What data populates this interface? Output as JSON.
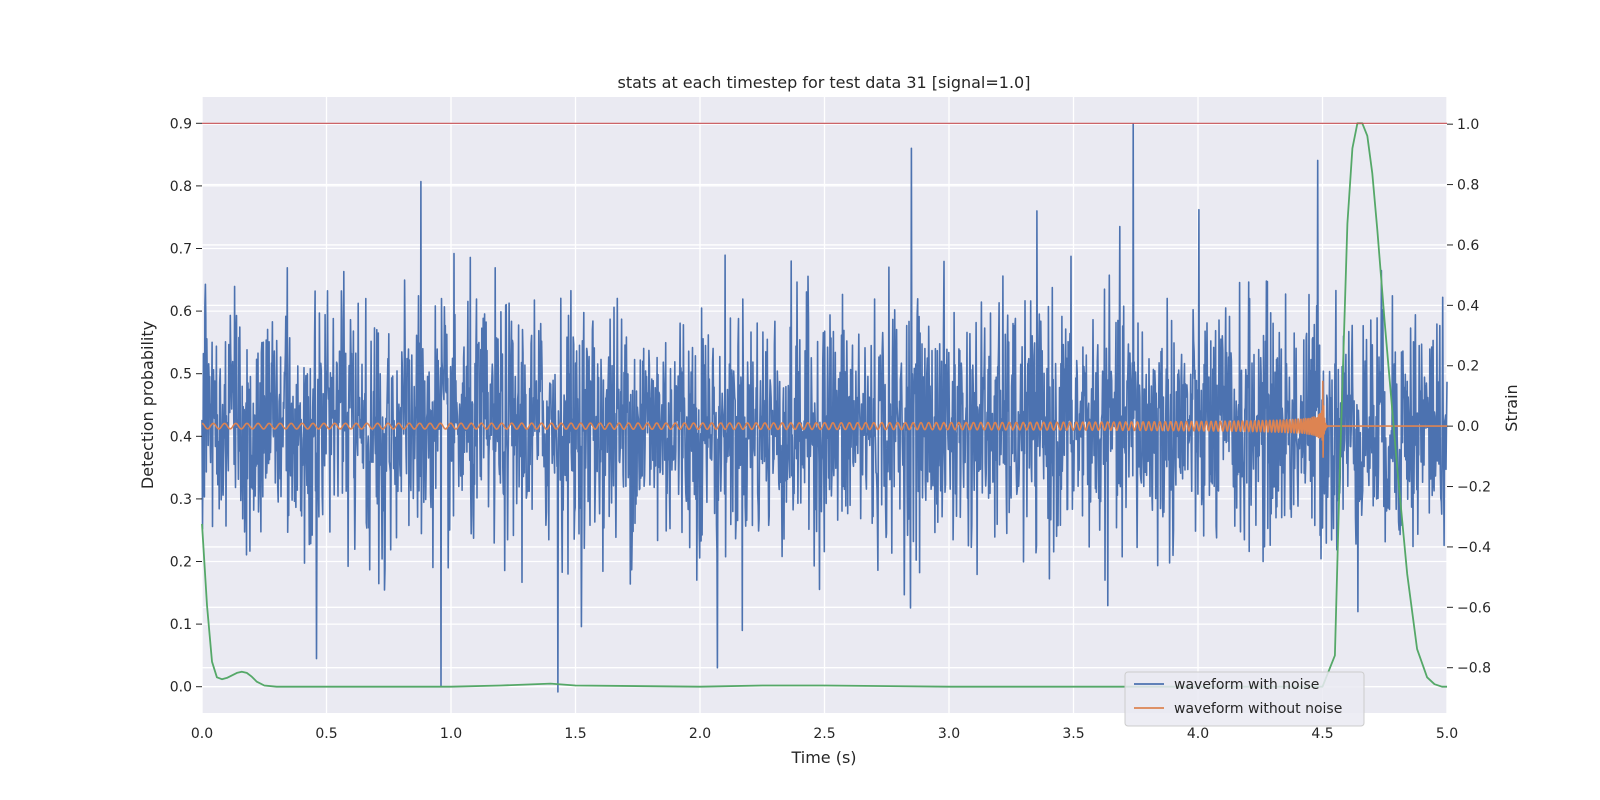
{
  "chart_data": {
    "type": "line",
    "title": "stats at each timestep for test data 31 [signal=1.0]",
    "xlabel": "Time (s)",
    "ylabel_left": "Detection probability",
    "ylabel_right": "Strain",
    "xlim": [
      0.0,
      5.0
    ],
    "ylim_left": [
      -0.042,
      0.942
    ],
    "ylim_right": [
      -0.95,
      1.09
    ],
    "x_ticks": [
      "0.0",
      "0.5",
      "1.0",
      "1.5",
      "2.0",
      "2.5",
      "3.0",
      "3.5",
      "4.0",
      "4.5",
      "5.0"
    ],
    "left_ticks": [
      "0.0",
      "0.1",
      "0.2",
      "0.3",
      "0.4",
      "0.5",
      "0.6",
      "0.7",
      "0.8",
      "0.9"
    ],
    "right_ticks": [
      "−0.8",
      "−0.6",
      "−0.4",
      "−0.2",
      "0.0",
      "0.2",
      "0.4",
      "0.6",
      "0.8",
      "1.0"
    ],
    "grid": true,
    "legend_position": "lower-right",
    "series": [
      {
        "name": "waveform with noise",
        "axis": "right",
        "color": "#4c72b0",
        "description_stats": {
          "mean": 0.0,
          "typical_range": [
            -0.45,
            0.45
          ],
          "extremes": [
            -0.91,
            1.0
          ]
        },
        "peaks": [
          {
            "x": 0.46,
            "y": -0.77
          },
          {
            "x": 0.96,
            "y": -0.86
          },
          {
            "x": 1.43,
            "y": -0.88
          },
          {
            "x": 2.07,
            "y": -0.8
          },
          {
            "x": 2.85,
            "y": 0.92
          },
          {
            "x": 3.74,
            "y": 1.0
          },
          {
            "x": 0.88,
            "y": 0.81
          },
          {
            "x": 4.48,
            "y": 0.88
          }
        ]
      },
      {
        "name": "waveform without noise",
        "axis": "right",
        "color": "#dd8452",
        "description_stats": {
          "chirp_start": 0.0,
          "merger_time": 4.5,
          "peak_amplitude": 0.23,
          "trough_amplitude": -0.2
        }
      },
      {
        "name": "",
        "axis": "left",
        "color": "#55a868",
        "x": [
          0.0,
          0.02,
          0.04,
          0.06,
          0.08,
          0.1,
          0.12,
          0.14,
          0.16,
          0.18,
          0.2,
          0.22,
          0.25,
          0.3,
          0.5,
          1.0,
          1.2,
          1.4,
          1.5,
          2.0,
          2.25,
          2.5,
          3.0,
          4.0,
          4.5,
          4.55,
          4.57,
          4.6,
          4.62,
          4.64,
          4.66,
          4.68,
          4.7,
          4.72,
          4.75,
          4.8,
          4.84,
          4.88,
          4.92,
          4.95,
          4.98,
          5.0
        ],
        "values": [
          0.26,
          0.13,
          0.04,
          0.015,
          0.012,
          0.014,
          0.018,
          0.022,
          0.024,
          0.022,
          0.016,
          0.008,
          0.002,
          0.0,
          0.0,
          0.0,
          0.002,
          0.005,
          0.002,
          0.0,
          0.002,
          0.002,
          0.0,
          0.0,
          0.0,
          0.05,
          0.35,
          0.74,
          0.86,
          0.9,
          0.9,
          0.88,
          0.82,
          0.73,
          0.58,
          0.35,
          0.18,
          0.06,
          0.015,
          0.004,
          0.0,
          0.0
        ]
      },
      {
        "name": "",
        "axis": "left",
        "color": "#c44e52",
        "x": [
          0.0,
          5.0
        ],
        "values": [
          0.9,
          0.9
        ]
      }
    ]
  }
}
